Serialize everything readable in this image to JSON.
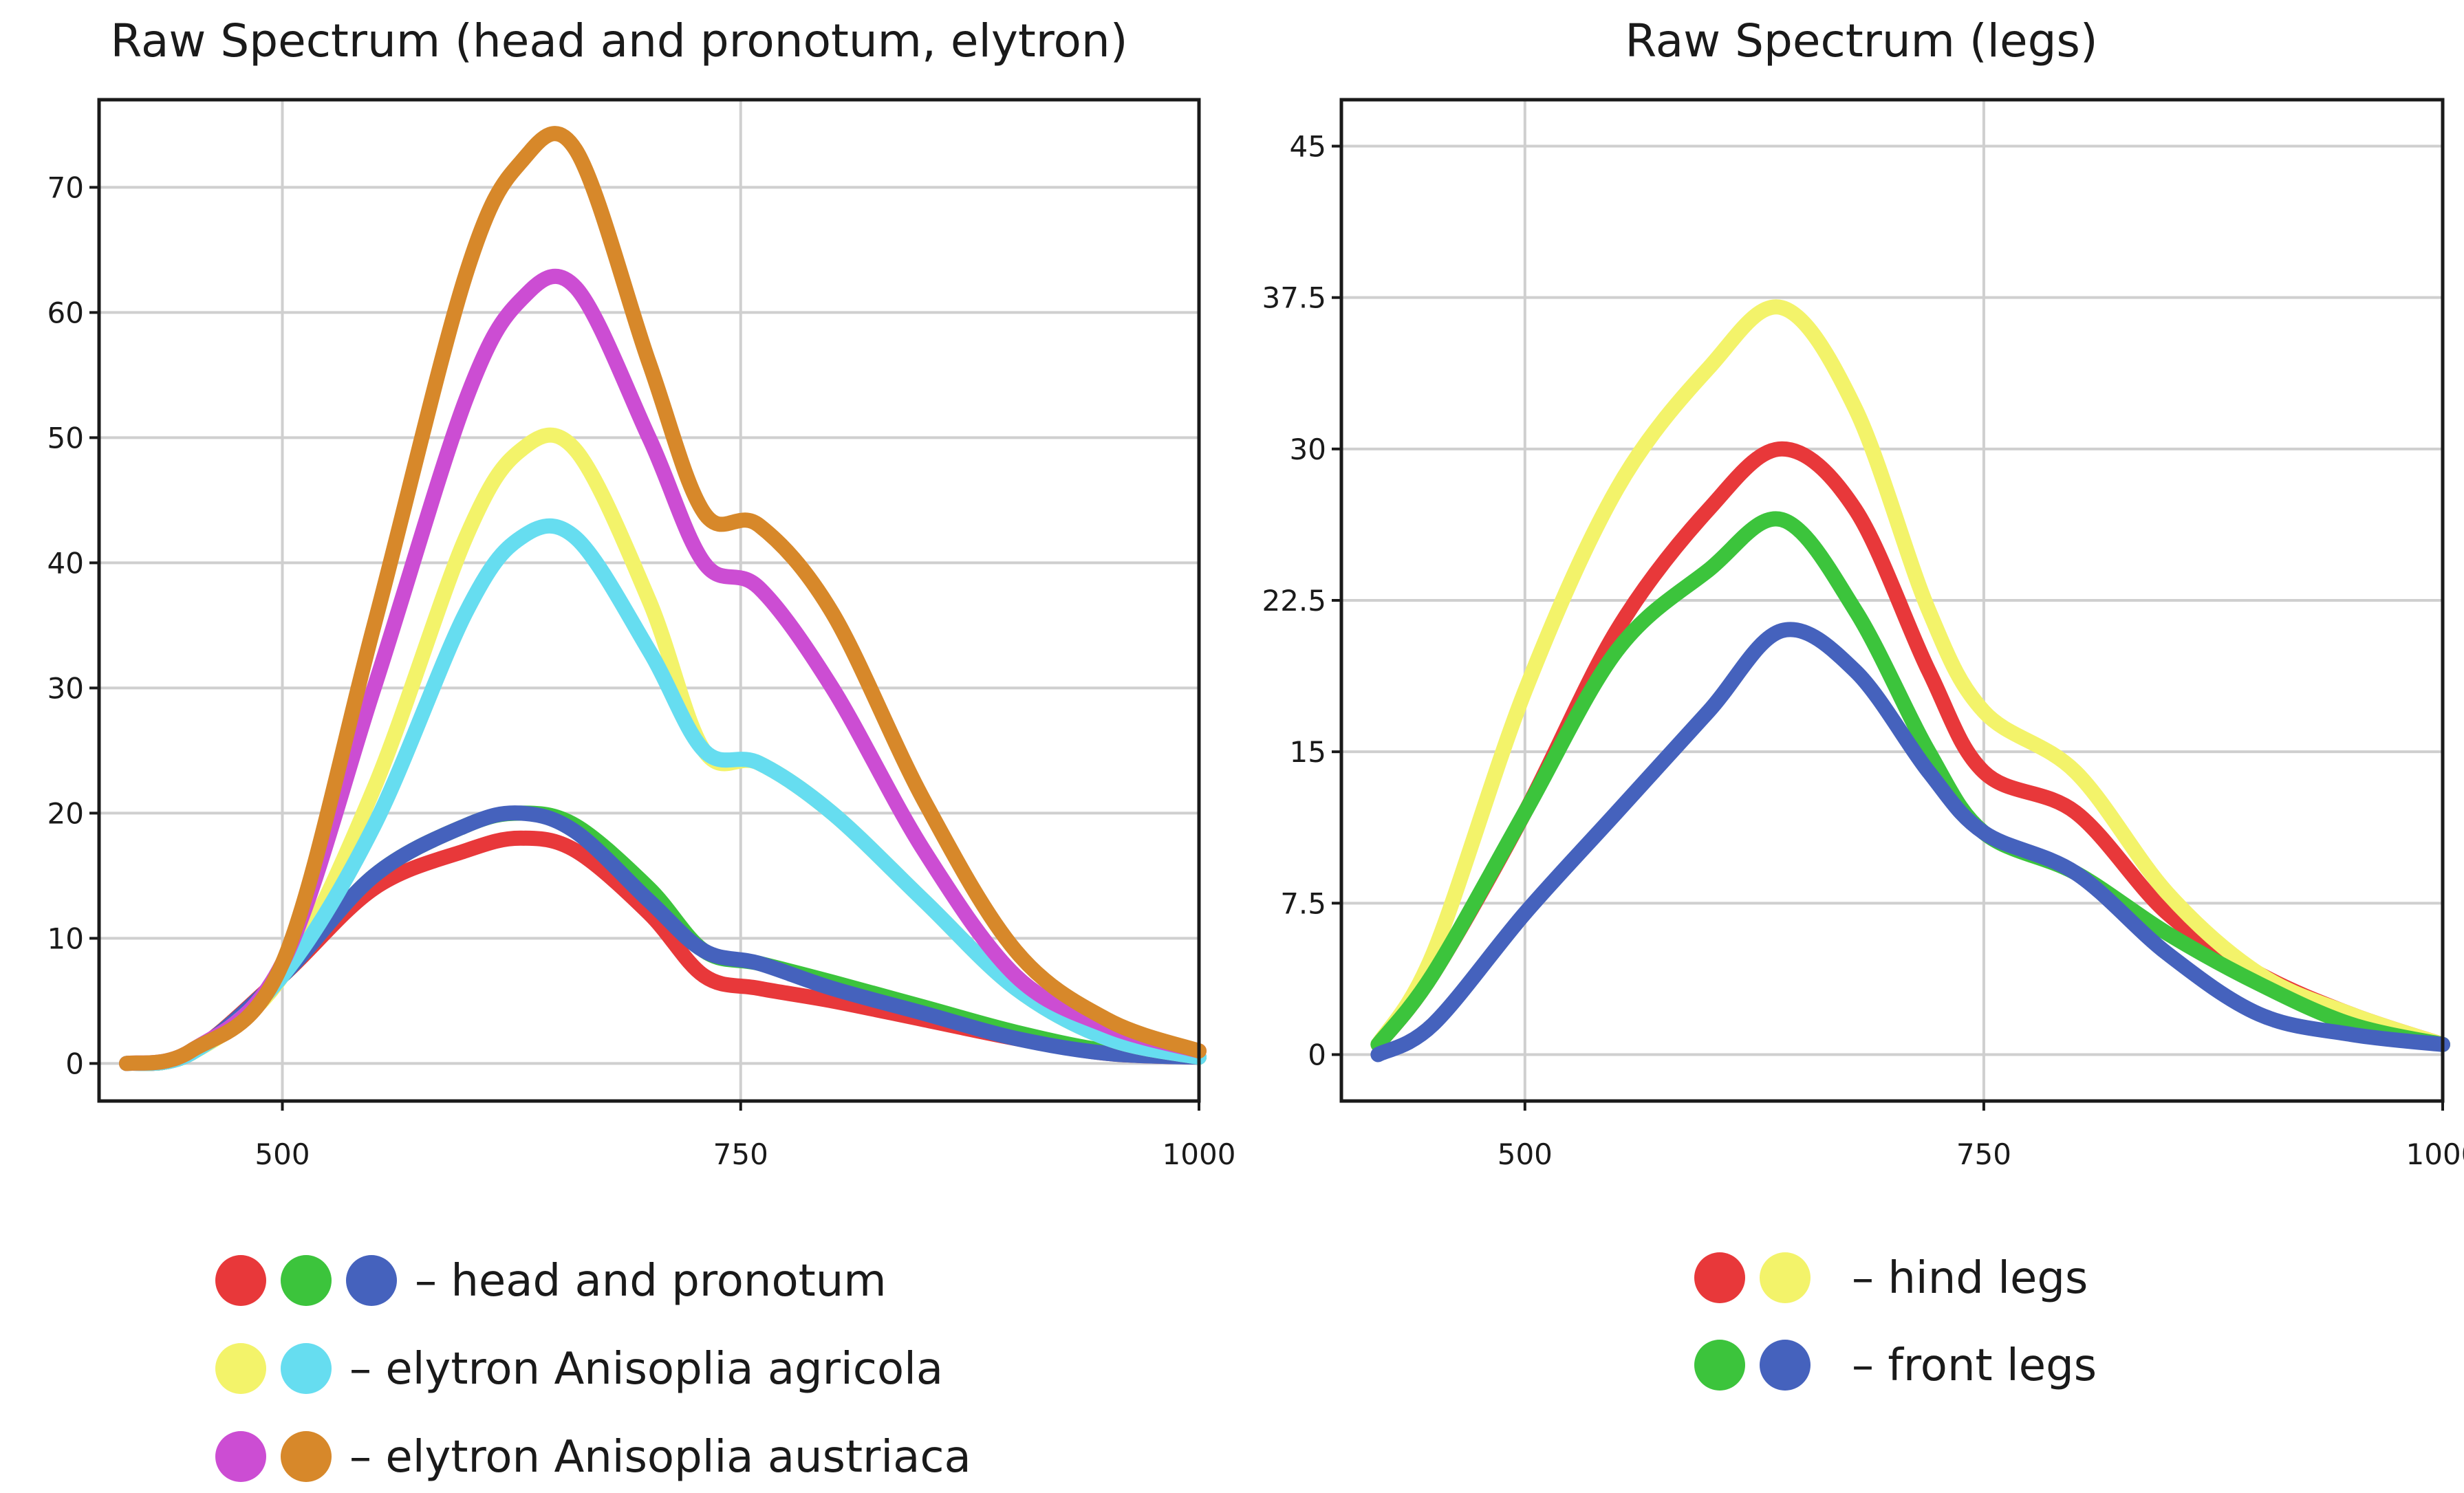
{
  "chart_data": [
    {
      "type": "line",
      "title": "Raw Spectrum (head and pronotum, elytron)",
      "xlabel": "",
      "ylabel": "",
      "xlim": [
        400,
        1000
      ],
      "ylim": [
        -3,
        77
      ],
      "xticks": [
        500,
        750,
        1000
      ],
      "yticks": [
        0,
        10,
        20,
        30,
        40,
        50,
        60,
        70
      ],
      "ytick_labels": [
        "0",
        "10",
        "20",
        "30",
        "40",
        "50",
        "60",
        "70"
      ],
      "grid": true,
      "x": [
        415,
        450,
        500,
        550,
        600,
        630,
        660,
        700,
        730,
        760,
        800,
        850,
        900,
        950,
        1000
      ],
      "series": [
        {
          "color": "#e8383a",
          "values": [
            0,
            0.8,
            7,
            14,
            17,
            18,
            17,
            12,
            7,
            6,
            5,
            3.5,
            2,
            0.8,
            0.5
          ]
        },
        {
          "color": "#3cc43c",
          "values": [
            0,
            0.8,
            7,
            15,
            19,
            20,
            19,
            14,
            9,
            8,
            6.5,
            4.5,
            2.5,
            1,
            0.5
          ]
        },
        {
          "color": "#4562bd",
          "values": [
            0,
            0.8,
            7,
            15,
            19,
            20,
            18.5,
            13,
            9,
            8,
            6,
            4,
            2,
            0.8,
            0.5
          ]
        },
        {
          "color": "#f3f36a",
          "values": [
            0,
            0.8,
            7,
            22,
            42,
            49,
            49,
            37,
            25,
            24,
            20,
            13,
            6,
            2,
            0.5
          ]
        },
        {
          "color": "#66ddf0",
          "values": [
            0,
            0.8,
            7,
            19,
            36,
            42,
            42,
            33,
            25,
            24,
            20,
            13,
            6,
            2,
            0.5
          ]
        },
        {
          "color": "#cc4dd3",
          "values": [
            0,
            1,
            8,
            30,
            53,
            61,
            62,
            50,
            40,
            38,
            30,
            17,
            7,
            3,
            1
          ]
        },
        {
          "color": "#d7882a",
          "values": [
            0,
            1,
            8,
            35,
            63,
            72,
            73,
            56,
            44,
            43,
            36,
            21,
            9,
            3.5,
            1
          ]
        }
      ]
    },
    {
      "type": "line",
      "title": "Raw Spectrum (legs)",
      "xlabel": "",
      "ylabel": "",
      "xlim": [
        400,
        1000
      ],
      "ylim": [
        -2.3,
        47.3
      ],
      "xticks": [
        500,
        750,
        1000
      ],
      "yticks": [
        0,
        7.5,
        15,
        22.5,
        30,
        37.5,
        45
      ],
      "ytick_labels": [
        "0",
        "7.5",
        "15",
        "22.5",
        "30",
        "37.5",
        "45"
      ],
      "grid": true,
      "x": [
        420,
        450,
        500,
        550,
        600,
        640,
        680,
        720,
        750,
        800,
        850,
        900,
        950,
        1000
      ],
      "series": [
        {
          "color": "#e8383a",
          "values": [
            0.5,
            4,
            12,
            21,
            27,
            30,
            27,
            19,
            14,
            12,
            7,
            4,
            2,
            0.5
          ]
        },
        {
          "color": "#f3f36a",
          "values": [
            0.5,
            5,
            18,
            28,
            34,
            37,
            32,
            22,
            17,
            14,
            8,
            4,
            2,
            0.5
          ]
        },
        {
          "color": "#3cc43c",
          "values": [
            0.5,
            4,
            12,
            20,
            24,
            26.5,
            22,
            15,
            11,
            9,
            6,
            3.5,
            1.5,
            0.5
          ]
        },
        {
          "color": "#4562bd",
          "values": [
            0,
            1.5,
            7,
            12,
            17,
            21,
            19,
            14,
            11,
            9,
            5,
            2,
            1,
            0.5
          ]
        }
      ]
    }
  ],
  "legends": [
    {
      "items": [
        {
          "colors": [
            "#e8383a",
            "#3cc43c",
            "#4562bd"
          ],
          "label": "– head and pronotum"
        },
        {
          "colors": [
            "#f3f36a",
            "#66ddf0"
          ],
          "label": "– elytron Anisoplia agricola"
        },
        {
          "colors": [
            "#cc4dd3",
            "#d7882a"
          ],
          "label": "– elytron Anisoplia austriaca"
        }
      ]
    },
    {
      "items": [
        {
          "colors": [
            "#e8383a",
            "#f3f36a"
          ],
          "label": "– hind legs"
        },
        {
          "colors": [
            "#3cc43c",
            "#4562bd"
          ],
          "label": "– front legs"
        }
      ]
    }
  ]
}
